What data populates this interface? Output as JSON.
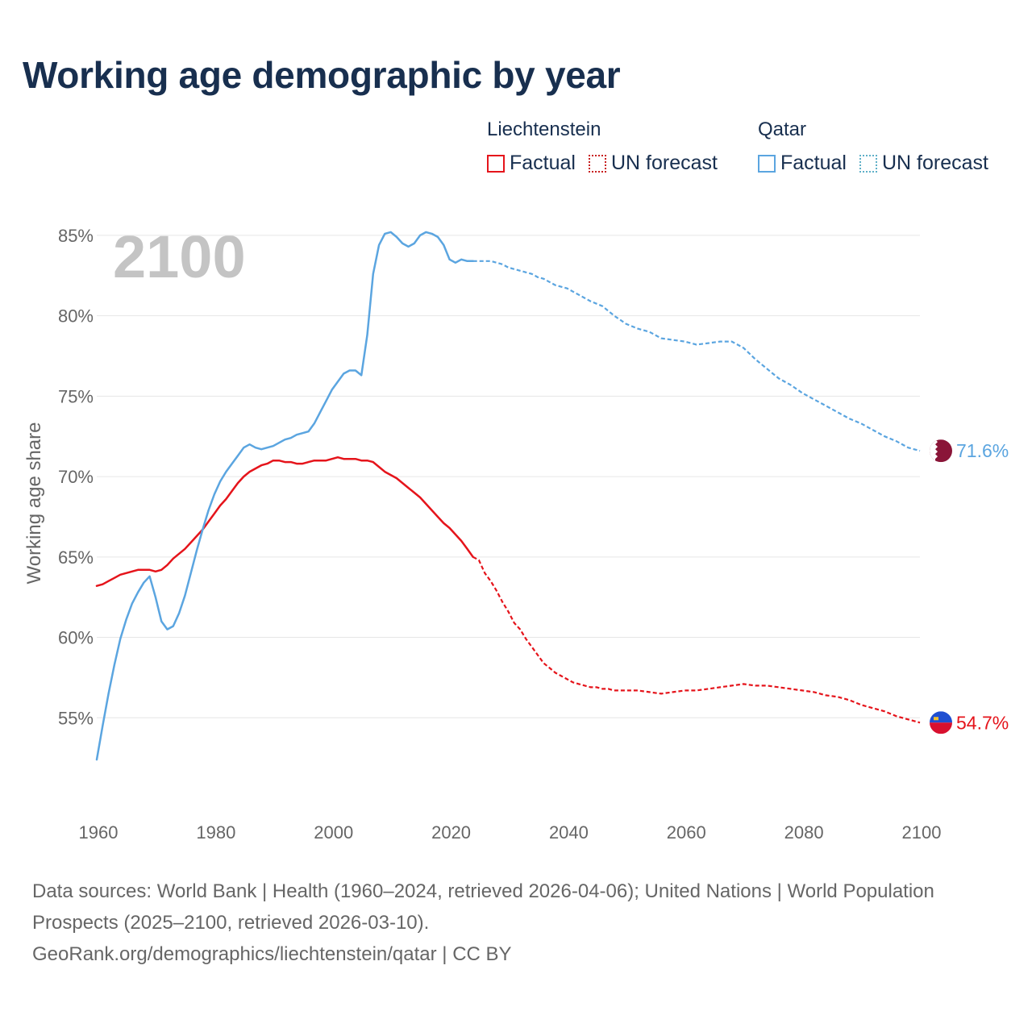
{
  "title": "Working age demographic by year",
  "legend": {
    "groups": [
      {
        "name": "Liechtenstein",
        "factual_label": "Factual",
        "forecast_label": "UN forecast",
        "color": "#e5141b"
      },
      {
        "name": "Qatar",
        "factual_label": "Factual",
        "forecast_label": "UN forecast",
        "color": "#5ba5e0"
      }
    ]
  },
  "footer": {
    "sources": "Data sources: World Bank | Health (1960–2024, retrieved 2026-04-06); United Nations | World Population Prospects (2025–2100, retrieved 2026-03-10).",
    "attribution": "GeoRank.org/demographics/liechtenstein/qatar | CC BY"
  },
  "chart_data": {
    "type": "line",
    "title": "Working age demographic by year",
    "year_watermark": "2100",
    "ylabel": "Working age share",
    "xlabel": "",
    "xlim": [
      1960,
      2100
    ],
    "ylim": [
      50,
      86.5
    ],
    "x_ticks": [
      "1960",
      "1980",
      "2000",
      "2020",
      "2040",
      "2060",
      "2080",
      "2100"
    ],
    "y_ticks": [
      "55%",
      "60%",
      "65%",
      "70%",
      "75%",
      "80%",
      "85%"
    ],
    "grid": true,
    "factual_until": 2024,
    "series": [
      {
        "name": "Liechtenstein",
        "color": "#e5141b",
        "end_label": "54.7%",
        "points": [
          [
            1960,
            63.2
          ],
          [
            1961,
            63.3
          ],
          [
            1962,
            63.5
          ],
          [
            1963,
            63.7
          ],
          [
            1964,
            63.9
          ],
          [
            1965,
            64.0
          ],
          [
            1966,
            64.1
          ],
          [
            1967,
            64.2
          ],
          [
            1968,
            64.2
          ],
          [
            1969,
            64.2
          ],
          [
            1970,
            64.1
          ],
          [
            1971,
            64.2
          ],
          [
            1972,
            64.5
          ],
          [
            1973,
            64.9
          ],
          [
            1974,
            65.2
          ],
          [
            1975,
            65.5
          ],
          [
            1976,
            65.9
          ],
          [
            1977,
            66.3
          ],
          [
            1978,
            66.7
          ],
          [
            1979,
            67.2
          ],
          [
            1980,
            67.7
          ],
          [
            1981,
            68.2
          ],
          [
            1982,
            68.6
          ],
          [
            1983,
            69.1
          ],
          [
            1984,
            69.6
          ],
          [
            1985,
            70.0
          ],
          [
            1986,
            70.3
          ],
          [
            1987,
            70.5
          ],
          [
            1988,
            70.7
          ],
          [
            1989,
            70.8
          ],
          [
            1990,
            71.0
          ],
          [
            1991,
            71.0
          ],
          [
            1992,
            70.9
          ],
          [
            1993,
            70.9
          ],
          [
            1994,
            70.8
          ],
          [
            1995,
            70.8
          ],
          [
            1996,
            70.9
          ],
          [
            1997,
            71.0
          ],
          [
            1998,
            71.0
          ],
          [
            1999,
            71.0
          ],
          [
            2000,
            71.1
          ],
          [
            2001,
            71.2
          ],
          [
            2002,
            71.1
          ],
          [
            2003,
            71.1
          ],
          [
            2004,
            71.1
          ],
          [
            2005,
            71.0
          ],
          [
            2006,
            71.0
          ],
          [
            2007,
            70.9
          ],
          [
            2008,
            70.6
          ],
          [
            2009,
            70.3
          ],
          [
            2010,
            70.1
          ],
          [
            2011,
            69.9
          ],
          [
            2012,
            69.6
          ],
          [
            2013,
            69.3
          ],
          [
            2014,
            69.0
          ],
          [
            2015,
            68.7
          ],
          [
            2016,
            68.3
          ],
          [
            2017,
            67.9
          ],
          [
            2018,
            67.5
          ],
          [
            2019,
            67.1
          ],
          [
            2020,
            66.8
          ],
          [
            2021,
            66.4
          ],
          [
            2022,
            66.0
          ],
          [
            2023,
            65.5
          ],
          [
            2024,
            65.0
          ],
          [
            2025,
            64.8
          ],
          [
            2026,
            64.0
          ],
          [
            2027,
            63.5
          ],
          [
            2028,
            62.9
          ],
          [
            2029,
            62.2
          ],
          [
            2030,
            61.6
          ],
          [
            2031,
            60.9
          ],
          [
            2032,
            60.5
          ],
          [
            2033,
            59.9
          ],
          [
            2034,
            59.4
          ],
          [
            2035,
            58.9
          ],
          [
            2036,
            58.4
          ],
          [
            2037,
            58.1
          ],
          [
            2038,
            57.8
          ],
          [
            2039,
            57.6
          ],
          [
            2040,
            57.4
          ],
          [
            2041,
            57.2
          ],
          [
            2042,
            57.1
          ],
          [
            2043,
            57.0
          ],
          [
            2044,
            56.9
          ],
          [
            2045,
            56.9
          ],
          [
            2046,
            56.8
          ],
          [
            2047,
            56.8
          ],
          [
            2048,
            56.7
          ],
          [
            2049,
            56.7
          ],
          [
            2050,
            56.7
          ],
          [
            2052,
            56.7
          ],
          [
            2054,
            56.6
          ],
          [
            2056,
            56.5
          ],
          [
            2058,
            56.6
          ],
          [
            2060,
            56.7
          ],
          [
            2062,
            56.7
          ],
          [
            2064,
            56.8
          ],
          [
            2066,
            56.9
          ],
          [
            2068,
            57.0
          ],
          [
            2070,
            57.1
          ],
          [
            2072,
            57.0
          ],
          [
            2074,
            57.0
          ],
          [
            2076,
            56.9
          ],
          [
            2078,
            56.8
          ],
          [
            2080,
            56.7
          ],
          [
            2082,
            56.6
          ],
          [
            2084,
            56.4
          ],
          [
            2086,
            56.3
          ],
          [
            2088,
            56.1
          ],
          [
            2090,
            55.8
          ],
          [
            2092,
            55.6
          ],
          [
            2094,
            55.4
          ],
          [
            2096,
            55.1
          ],
          [
            2098,
            54.9
          ],
          [
            2100,
            54.7
          ]
        ]
      },
      {
        "name": "Qatar",
        "color": "#5ba5e0",
        "end_label": "71.6%",
        "points": [
          [
            1960,
            52.4
          ],
          [
            1961,
            54.5
          ],
          [
            1962,
            56.5
          ],
          [
            1963,
            58.3
          ],
          [
            1964,
            59.9
          ],
          [
            1965,
            61.1
          ],
          [
            1966,
            62.1
          ],
          [
            1967,
            62.8
          ],
          [
            1968,
            63.4
          ],
          [
            1969,
            63.8
          ],
          [
            1970,
            62.5
          ],
          [
            1971,
            61.0
          ],
          [
            1972,
            60.5
          ],
          [
            1973,
            60.7
          ],
          [
            1974,
            61.5
          ],
          [
            1975,
            62.6
          ],
          [
            1976,
            64.0
          ],
          [
            1977,
            65.4
          ],
          [
            1978,
            66.7
          ],
          [
            1979,
            67.9
          ],
          [
            1980,
            68.9
          ],
          [
            1981,
            69.7
          ],
          [
            1982,
            70.3
          ],
          [
            1983,
            70.8
          ],
          [
            1984,
            71.3
          ],
          [
            1985,
            71.8
          ],
          [
            1986,
            72.0
          ],
          [
            1987,
            71.8
          ],
          [
            1988,
            71.7
          ],
          [
            1989,
            71.8
          ],
          [
            1990,
            71.9
          ],
          [
            1991,
            72.1
          ],
          [
            1992,
            72.3
          ],
          [
            1993,
            72.4
          ],
          [
            1994,
            72.6
          ],
          [
            1995,
            72.7
          ],
          [
            1996,
            72.8
          ],
          [
            1997,
            73.3
          ],
          [
            1998,
            74.0
          ],
          [
            1999,
            74.7
          ],
          [
            2000,
            75.4
          ],
          [
            2001,
            75.9
          ],
          [
            2002,
            76.4
          ],
          [
            2003,
            76.6
          ],
          [
            2004,
            76.6
          ],
          [
            2005,
            76.3
          ],
          [
            2006,
            78.8
          ],
          [
            2007,
            82.6
          ],
          [
            2008,
            84.4
          ],
          [
            2009,
            85.1
          ],
          [
            2010,
            85.2
          ],
          [
            2011,
            84.9
          ],
          [
            2012,
            84.5
          ],
          [
            2013,
            84.3
          ],
          [
            2014,
            84.5
          ],
          [
            2015,
            85.0
          ],
          [
            2016,
            85.2
          ],
          [
            2017,
            85.1
          ],
          [
            2018,
            84.9
          ],
          [
            2019,
            84.4
          ],
          [
            2020,
            83.5
          ],
          [
            2021,
            83.3
          ],
          [
            2022,
            83.5
          ],
          [
            2023,
            83.4
          ],
          [
            2024,
            83.4
          ],
          [
            2025,
            83.4
          ],
          [
            2026,
            83.4
          ],
          [
            2027,
            83.4
          ],
          [
            2028,
            83.3
          ],
          [
            2029,
            83.2
          ],
          [
            2030,
            83.0
          ],
          [
            2031,
            82.9
          ],
          [
            2032,
            82.8
          ],
          [
            2033,
            82.7
          ],
          [
            2034,
            82.6
          ],
          [
            2035,
            82.4
          ],
          [
            2036,
            82.3
          ],
          [
            2037,
            82.1
          ],
          [
            2038,
            81.9
          ],
          [
            2039,
            81.8
          ],
          [
            2040,
            81.7
          ],
          [
            2042,
            81.3
          ],
          [
            2044,
            80.9
          ],
          [
            2046,
            80.6
          ],
          [
            2048,
            80.0
          ],
          [
            2050,
            79.5
          ],
          [
            2052,
            79.2
          ],
          [
            2054,
            79.0
          ],
          [
            2056,
            78.6
          ],
          [
            2058,
            78.5
          ],
          [
            2060,
            78.4
          ],
          [
            2062,
            78.2
          ],
          [
            2064,
            78.3
          ],
          [
            2066,
            78.4
          ],
          [
            2068,
            78.4
          ],
          [
            2070,
            78.0
          ],
          [
            2072,
            77.3
          ],
          [
            2074,
            76.7
          ],
          [
            2076,
            76.1
          ],
          [
            2078,
            75.7
          ],
          [
            2080,
            75.2
          ],
          [
            2082,
            74.8
          ],
          [
            2084,
            74.4
          ],
          [
            2086,
            74.0
          ],
          [
            2088,
            73.6
          ],
          [
            2090,
            73.3
          ],
          [
            2092,
            72.9
          ],
          [
            2094,
            72.5
          ],
          [
            2096,
            72.2
          ],
          [
            2098,
            71.8
          ],
          [
            2100,
            71.6
          ]
        ]
      }
    ]
  }
}
